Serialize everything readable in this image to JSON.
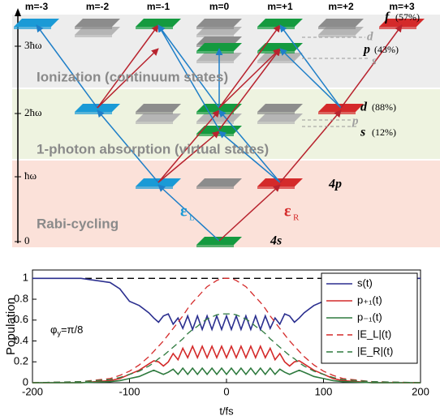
{
  "diagram": {
    "columns": [
      "m=-3",
      "m=-2",
      "m=-1",
      "m=0",
      "m=+1",
      "m=+2",
      "m=+3"
    ],
    "levels": [
      "3ħω",
      "2ħω",
      "ħω",
      "0"
    ],
    "state_labels": [
      "f",
      "(57%)",
      "d",
      "p",
      "(43%)",
      "s",
      "d",
      "(88%)",
      "p",
      "s",
      "(12%)",
      "4p",
      "4s"
    ],
    "regions": [
      "Ionization (continuum states)",
      "1-photon absorption (virtual states)",
      "Rabi-cycling"
    ],
    "fields": [
      {
        "symbol": "ε",
        "sub": "L"
      },
      {
        "symbol": "ε",
        "sub": "R"
      }
    ]
  },
  "chart_data": {
    "type": "line",
    "xlabel": "t/fs",
    "ylabel": "Population",
    "annotation": {
      "text": "φ",
      "sub": "y",
      "rest": "=π/8"
    },
    "x": [
      -200,
      -150,
      -120,
      -110,
      -100,
      -90,
      -80,
      -75,
      -70,
      -65,
      -60,
      -55,
      -50,
      -45,
      -40,
      -35,
      -30,
      -25,
      -20,
      -15,
      -10,
      -5,
      0,
      5,
      10,
      15,
      20,
      25,
      30,
      35,
      40,
      45,
      50,
      55,
      60,
      65,
      70,
      75,
      80,
      90,
      100,
      110,
      120,
      150,
      200
    ],
    "xlim": [
      -200,
      200
    ],
    "xticks": [
      -200,
      -100,
      0,
      100,
      200
    ],
    "ylim": [
      0,
      1.08
    ],
    "yticks": [
      0,
      0.2,
      0.4,
      0.6,
      0.8,
      1
    ],
    "legend": "upper right",
    "series": [
      {
        "color": "#000000",
        "dash": true,
        "values": [
          1,
          1,
          1,
          1,
          1,
          1,
          1,
          1,
          1,
          1,
          1,
          1,
          1,
          1,
          1,
          1,
          1,
          1,
          1,
          1,
          1,
          1,
          1,
          1,
          1,
          1,
          1,
          1,
          1,
          1,
          1,
          1,
          1,
          1,
          1,
          1,
          1,
          1,
          1,
          1,
          1,
          1,
          1,
          1,
          1
        ]
      },
      {
        "name": "s(t)",
        "color": "#2b2f8f",
        "dash": false,
        "values": [
          1,
          1,
          0.96,
          0.9,
          0.78,
          0.74,
          0.67,
          0.62,
          0.58,
          0.64,
          0.66,
          0.56,
          0.62,
          0.52,
          0.64,
          0.51,
          0.64,
          0.51,
          0.64,
          0.51,
          0.64,
          0.51,
          0.64,
          0.51,
          0.64,
          0.51,
          0.64,
          0.51,
          0.64,
          0.51,
          0.64,
          0.52,
          0.62,
          0.56,
          0.66,
          0.64,
          0.58,
          0.62,
          0.67,
          0.74,
          0.78,
          0.9,
          0.96,
          1,
          1
        ]
      },
      {
        "name": "p₊₁(t)",
        "color": "#d42a2a",
        "dash": false,
        "values": [
          0,
          0,
          0.02,
          0.04,
          0.08,
          0.12,
          0.18,
          0.21,
          0.2,
          0.16,
          0.2,
          0.28,
          0.22,
          0.33,
          0.24,
          0.35,
          0.24,
          0.35,
          0.24,
          0.35,
          0.24,
          0.35,
          0.24,
          0.35,
          0.24,
          0.35,
          0.24,
          0.35,
          0.24,
          0.35,
          0.24,
          0.33,
          0.22,
          0.28,
          0.2,
          0.16,
          0.2,
          0.21,
          0.18,
          0.12,
          0.08,
          0.04,
          0.02,
          0,
          0
        ]
      },
      {
        "name": "p₋₁(t)",
        "color": "#2e7a3e",
        "dash": false,
        "values": [
          0,
          0,
          0.01,
          0.02,
          0.04,
          0.06,
          0.1,
          0.12,
          0.1,
          0.08,
          0.1,
          0.13,
          0.08,
          0.14,
          0.08,
          0.14,
          0.08,
          0.14,
          0.08,
          0.14,
          0.08,
          0.14,
          0.08,
          0.14,
          0.08,
          0.14,
          0.08,
          0.14,
          0.08,
          0.14,
          0.08,
          0.14,
          0.08,
          0.13,
          0.1,
          0.08,
          0.1,
          0.12,
          0.1,
          0.06,
          0.04,
          0.02,
          0.01,
          0,
          0
        ]
      },
      {
        "name": "|E_L|(t)",
        "color": "#d42a2a",
        "dash": true,
        "values": [
          0,
          0.01,
          0.04,
          0.07,
          0.11,
          0.17,
          0.25,
          0.3,
          0.35,
          0.4,
          0.46,
          0.52,
          0.58,
          0.64,
          0.71,
          0.77,
          0.82,
          0.87,
          0.92,
          0.95,
          0.98,
          1,
          1,
          1,
          0.98,
          0.95,
          0.92,
          0.87,
          0.82,
          0.77,
          0.71,
          0.64,
          0.58,
          0.52,
          0.46,
          0.4,
          0.35,
          0.3,
          0.25,
          0.17,
          0.11,
          0.07,
          0.04,
          0.01,
          0
        ]
      },
      {
        "name": "|E_R|(t)",
        "color": "#2e7a3e",
        "dash": true,
        "values": [
          0,
          0.01,
          0.03,
          0.05,
          0.08,
          0.11,
          0.16,
          0.19,
          0.23,
          0.26,
          0.3,
          0.34,
          0.38,
          0.42,
          0.47,
          0.51,
          0.54,
          0.58,
          0.61,
          0.63,
          0.65,
          0.66,
          0.66,
          0.66,
          0.65,
          0.63,
          0.61,
          0.58,
          0.54,
          0.51,
          0.47,
          0.42,
          0.38,
          0.34,
          0.3,
          0.26,
          0.23,
          0.19,
          0.16,
          0.11,
          0.08,
          0.05,
          0.03,
          0.01,
          0
        ]
      }
    ]
  }
}
